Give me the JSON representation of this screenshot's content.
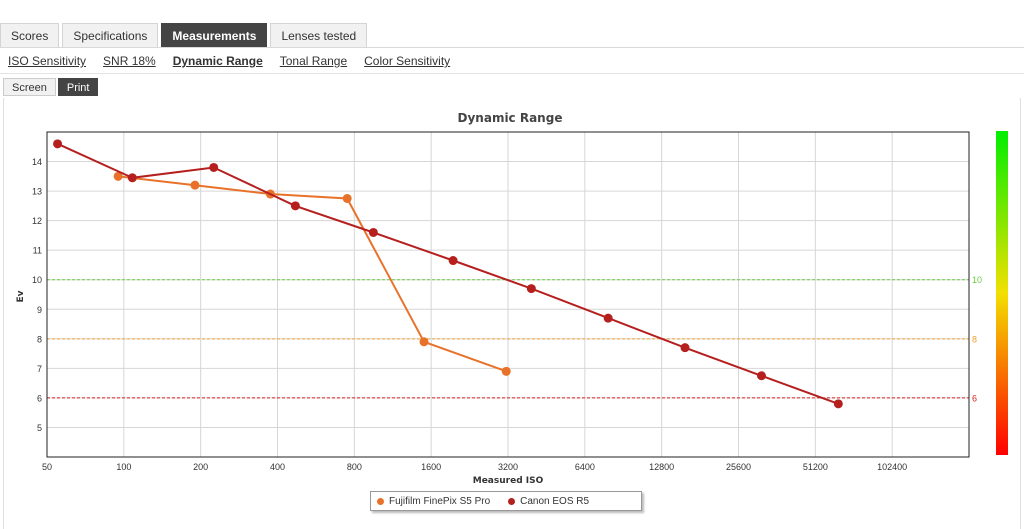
{
  "tabs": [
    {
      "label": "Scores",
      "active": false
    },
    {
      "label": "Specifications",
      "active": false
    },
    {
      "label": "Measurements",
      "active": true
    },
    {
      "label": "Lenses tested",
      "active": false
    }
  ],
  "subnav": [
    {
      "label": "ISO Sensitivity",
      "active": false
    },
    {
      "label": "SNR 18%",
      "active": false
    },
    {
      "label": "Dynamic Range",
      "active": true
    },
    {
      "label": "Tonal Range",
      "active": false
    },
    {
      "label": "Color Sensitivity",
      "active": false
    }
  ],
  "view": {
    "screen_label": "Screen",
    "print_label": "Print",
    "active": "print"
  },
  "chart_data": {
    "type": "line",
    "title": "Dynamic Range",
    "xlabel": "Measured ISO",
    "ylabel": "Ev",
    "x_scale": "log2",
    "x_ticks": [
      50,
      100,
      200,
      400,
      800,
      1600,
      3200,
      6400,
      12800,
      25600,
      51200,
      102400
    ],
    "xlim": [
      50,
      204800
    ],
    "y_ticks": [
      5,
      6,
      7,
      8,
      9,
      10,
      11,
      12,
      13,
      14
    ],
    "ylim": [
      4,
      15
    ],
    "grid": true,
    "reference_lines": [
      {
        "value": 10,
        "label": "10",
        "color": "#66cc44"
      },
      {
        "value": 8,
        "label": "8",
        "color": "#f0a030"
      },
      {
        "value": 6,
        "label": "6",
        "color": "#d22222"
      }
    ],
    "color_bar": {
      "top": "#00ee00",
      "middle": "#f2e000",
      "bottom": "#ff0000"
    },
    "legend_position": "bottom-center",
    "series": [
      {
        "name": "Fujifilm FinePix S5 Pro",
        "color": "#e8722a",
        "x": [
          95,
          190,
          375,
          750,
          1500,
          3150
        ],
        "y": [
          13.5,
          13.2,
          12.9,
          12.75,
          7.9,
          6.9
        ]
      },
      {
        "name": "Canon EOS R5",
        "color": "#b5201f",
        "x": [
          55,
          108,
          225,
          470,
          950,
          1950,
          3950,
          7900,
          15800,
          31500,
          63000
        ],
        "y": [
          14.6,
          13.45,
          13.8,
          12.5,
          11.6,
          10.65,
          9.7,
          8.7,
          7.7,
          6.75,
          5.8
        ]
      }
    ]
  }
}
